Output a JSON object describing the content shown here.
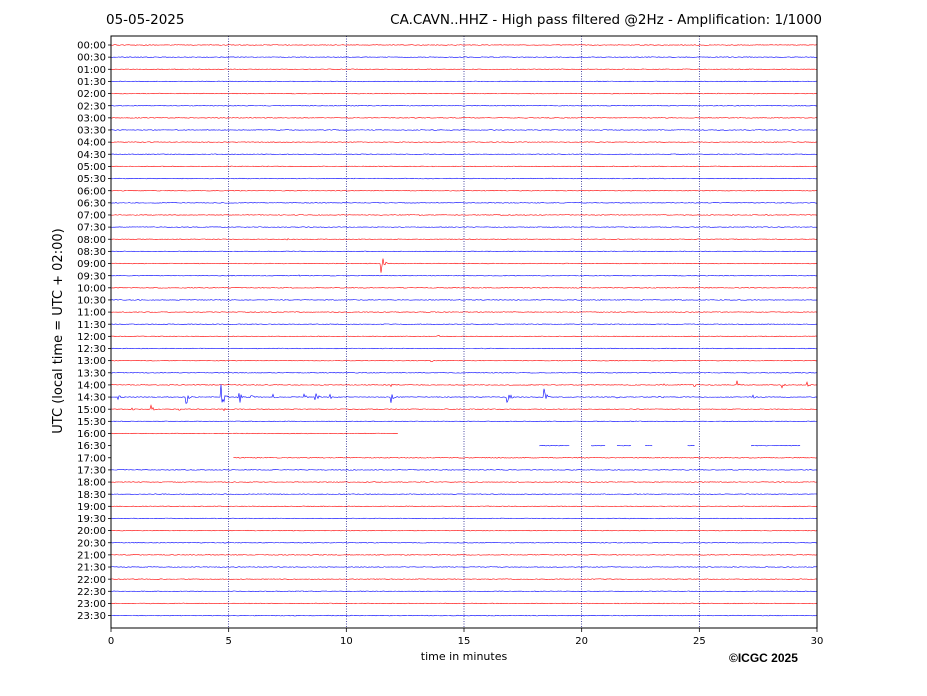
{
  "header": {
    "date": "05-05-2025",
    "title": "CA.CAVN..HHZ - High pass filtered @2Hz - Amplification: 1/1000"
  },
  "copyright": "©ICGC 2025",
  "colors": {
    "odd_row": "#ff0000",
    "even_row": "#0000ff",
    "grid": "#000080",
    "frame": "#000000"
  },
  "chart_data": {
    "type": "line",
    "title": "CA.CAVN..HHZ - High pass filtered @2Hz - Amplification: 1/1000",
    "xlabel": "time in minutes",
    "ylabel": "UTC (local time = UTC + 02:00)",
    "xlim": [
      0,
      30
    ],
    "xticks": [
      0,
      5,
      10,
      15,
      20,
      25,
      30
    ],
    "vertical_grid": [
      5,
      10,
      15,
      20,
      25
    ],
    "grid": true,
    "row_labels": [
      "00:00",
      "00:30",
      "01:00",
      "01:30",
      "02:00",
      "02:30",
      "03:00",
      "03:30",
      "04:00",
      "04:30",
      "05:00",
      "05:30",
      "06:00",
      "06:30",
      "07:00",
      "07:30",
      "08:00",
      "08:30",
      "09:00",
      "09:30",
      "10:00",
      "10:30",
      "11:00",
      "11:30",
      "12:00",
      "12:30",
      "13:00",
      "13:30",
      "14:00",
      "14:30",
      "15:00",
      "15:30",
      "16:00",
      "16:30",
      "17:00",
      "17:30",
      "18:00",
      "18:30",
      "19:00",
      "19:30",
      "20:00",
      "20:30",
      "21:00",
      "21:30",
      "22:00",
      "22:30",
      "23:00",
      "23:30"
    ],
    "row_colors": "alternating red/blue starting with red",
    "gaps": [
      {
        "row": "16:00",
        "from": 12.2,
        "to": 30
      },
      {
        "row": "16:30",
        "from": 0,
        "to": 18.2
      },
      {
        "row": "16:30",
        "from": 19.5,
        "to": 20.4
      },
      {
        "row": "16:30",
        "from": 21.0,
        "to": 21.5
      },
      {
        "row": "16:30",
        "from": 22.1,
        "to": 22.7
      },
      {
        "row": "16:30",
        "from": 23.0,
        "to": 24.5
      },
      {
        "row": "16:30",
        "from": 24.8,
        "to": 27.2
      },
      {
        "row": "16:30",
        "from": 29.3,
        "to": 30
      },
      {
        "row": "17:00",
        "from": 0,
        "to": 5.2
      }
    ],
    "events": [
      {
        "row": "02:00",
        "minute": 27.3,
        "amplitude": 0.8
      },
      {
        "row": "07:00",
        "minute": 13.1,
        "amplitude": 1.2
      },
      {
        "row": "08:00",
        "minute": 7.5,
        "amplitude": 0.8
      },
      {
        "row": "09:00",
        "minute": 11.5,
        "amplitude": 10
      },
      {
        "row": "09:30",
        "minute": 8.0,
        "amplitude": 1.0
      },
      {
        "row": "12:00",
        "minute": 13.9,
        "amplitude": 2.0
      },
      {
        "row": "13:00",
        "minute": 13.6,
        "amplitude": 1.6
      },
      {
        "row": "14:00",
        "minute": 11.9,
        "amplitude": 2.0
      },
      {
        "row": "14:00",
        "minute": 23.5,
        "amplitude": 2.0
      },
      {
        "row": "14:00",
        "minute": 24.8,
        "amplitude": 2.2
      },
      {
        "row": "14:00",
        "minute": 26.6,
        "amplitude": 4.5
      },
      {
        "row": "14:00",
        "minute": 28.5,
        "amplitude": 3.5
      },
      {
        "row": "14:00",
        "minute": 29.6,
        "amplitude": 3.0
      },
      {
        "row": "14:30",
        "minute": 0.3,
        "amplitude": 3.0
      },
      {
        "row": "14:30",
        "minute": 3.2,
        "amplitude": 10
      },
      {
        "row": "14:30",
        "minute": 4.7,
        "amplitude": 14
      },
      {
        "row": "14:30",
        "minute": 5.4,
        "amplitude": 14
      },
      {
        "row": "14:30",
        "minute": 5.9,
        "amplitude": 8
      },
      {
        "row": "14:30",
        "minute": 6.9,
        "amplitude": 3
      },
      {
        "row": "14:30",
        "minute": 8.2,
        "amplitude": 4
      },
      {
        "row": "14:30",
        "minute": 8.7,
        "amplitude": 9
      },
      {
        "row": "14:30",
        "minute": 9.3,
        "amplitude": 3
      },
      {
        "row": "14:30",
        "minute": 11.9,
        "amplitude": 8
      },
      {
        "row": "14:30",
        "minute": 16.8,
        "amplitude": 16
      },
      {
        "row": "14:30",
        "minute": 18.4,
        "amplitude": 9
      },
      {
        "row": "14:30",
        "minute": 21.5,
        "amplitude": 4
      },
      {
        "row": "14:30",
        "minute": 23.3,
        "amplitude": 4
      },
      {
        "row": "14:30",
        "minute": 27.3,
        "amplitude": 3
      },
      {
        "row": "15:00",
        "minute": 1.7,
        "amplitude": 4
      },
      {
        "row": "15:00",
        "minute": 0.9,
        "amplitude": 2
      },
      {
        "row": "15:00",
        "minute": 2.9,
        "amplitude": 2
      },
      {
        "row": "15:00",
        "minute": 4.8,
        "amplitude": 2
      }
    ]
  }
}
